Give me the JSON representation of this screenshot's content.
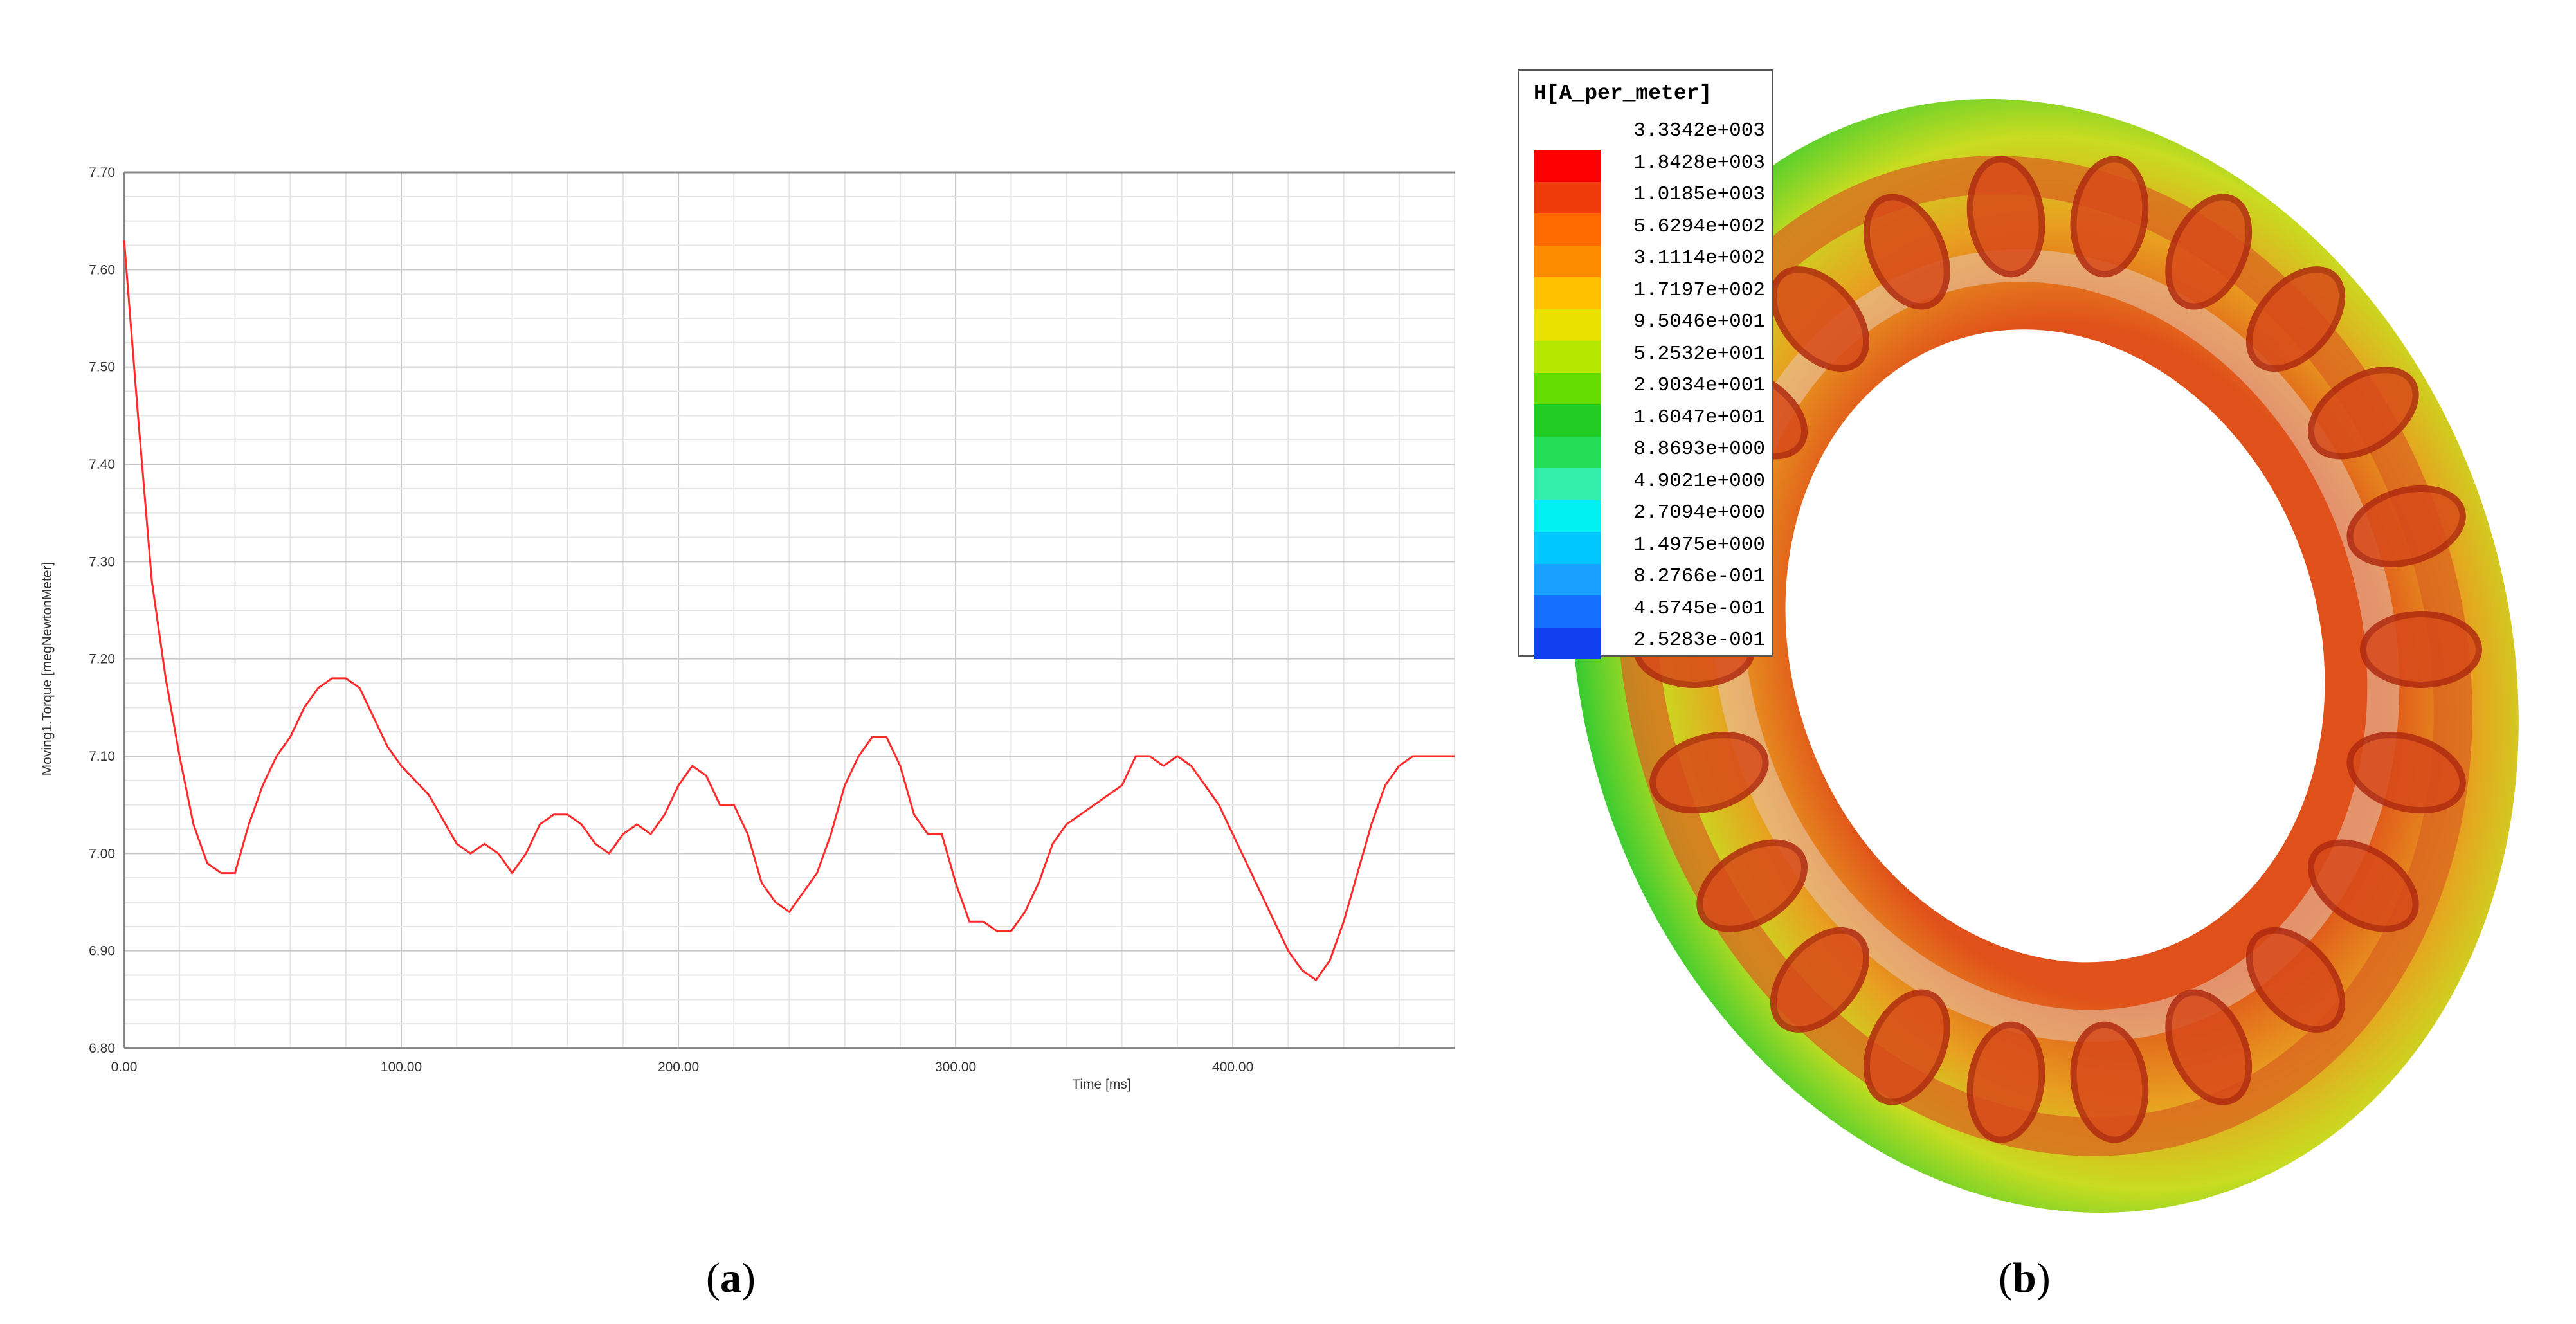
{
  "chart_data": {
    "type": "line",
    "xlabel": "Time [ms]",
    "ylabel": "Moving1.Torque [megNewtonMeter]",
    "xlim": [
      0,
      480
    ],
    "ylim": [
      6.8,
      7.7
    ],
    "xticks": [
      "0.00",
      "100.00",
      "200.00",
      "300.00",
      "400.00"
    ],
    "xtick_values": [
      0,
      100,
      200,
      300,
      400
    ],
    "yticks": [
      "6.80",
      "6.90",
      "7.00",
      "7.10",
      "7.20",
      "7.30",
      "7.40",
      "7.50",
      "7.60",
      "7.70"
    ],
    "ytick_values": [
      6.8,
      6.9,
      7.0,
      7.1,
      7.2,
      7.3,
      7.4,
      7.5,
      7.6,
      7.7
    ],
    "grid": true,
    "series": [
      {
        "name": "Moving1.Torque",
        "color": "#ff2a2a",
        "x": [
          0,
          5,
          10,
          15,
          20,
          25,
          30,
          35,
          40,
          45,
          50,
          55,
          60,
          65,
          70,
          75,
          80,
          85,
          90,
          95,
          100,
          110,
          120,
          125,
          130,
          135,
          140,
          145,
          150,
          155,
          160,
          165,
          170,
          175,
          180,
          185,
          190,
          195,
          200,
          205,
          210,
          215,
          220,
          225,
          230,
          235,
          240,
          245,
          250,
          255,
          260,
          265,
          270,
          275,
          280,
          285,
          290,
          295,
          300,
          305,
          310,
          315,
          320,
          325,
          330,
          335,
          340,
          345,
          350,
          355,
          360,
          365,
          370,
          375,
          380,
          385,
          390,
          395,
          400,
          405,
          410,
          415,
          420,
          425,
          430,
          435,
          440,
          445,
          450,
          455,
          460,
          465,
          470,
          475,
          480
        ],
        "y": [
          7.63,
          7.45,
          7.28,
          7.18,
          7.1,
          7.03,
          6.99,
          6.98,
          6.98,
          7.03,
          7.07,
          7.1,
          7.12,
          7.15,
          7.17,
          7.18,
          7.18,
          7.17,
          7.14,
          7.11,
          7.09,
          7.06,
          7.01,
          7.0,
          7.01,
          7.0,
          6.98,
          7.0,
          7.03,
          7.04,
          7.04,
          7.03,
          7.01,
          7.0,
          7.02,
          7.03,
          7.02,
          7.04,
          7.07,
          7.09,
          7.08,
          7.05,
          7.05,
          7.02,
          6.97,
          6.95,
          6.94,
          6.96,
          6.98,
          7.02,
          7.07,
          7.1,
          7.12,
          7.12,
          7.09,
          7.04,
          7.02,
          7.02,
          6.97,
          6.93,
          6.93,
          6.92,
          6.92,
          6.94,
          6.97,
          7.01,
          7.03,
          7.04,
          7.05,
          7.06,
          7.07,
          7.1,
          7.1,
          7.09,
          7.1,
          7.09,
          7.07,
          7.05,
          7.02,
          6.99,
          6.96,
          6.93,
          6.9,
          6.88,
          6.87,
          6.89,
          6.93,
          6.98,
          7.03,
          7.07,
          7.09,
          7.1,
          7.1,
          7.1,
          7.1
        ]
      }
    ]
  },
  "legend": {
    "title": "H[A_per_meter]",
    "values": [
      "3.3342e+003",
      "1.8428e+003",
      "1.0185e+003",
      "5.6294e+002",
      "3.1114e+002",
      "1.7197e+002",
      "9.5046e+001",
      "5.2532e+001",
      "2.9034e+001",
      "1.6047e+001",
      "8.8693e+000",
      "4.9021e+000",
      "2.7094e+000",
      "1.4975e+000",
      "8.2766e-001",
      "4.5745e-001",
      "2.5283e-001"
    ],
    "colors": [
      "#ff0000",
      "#f03a0a",
      "#ff6a00",
      "#ff8c00",
      "#ffc000",
      "#e8e000",
      "#b4e600",
      "#66dd00",
      "#22cc22",
      "#22dd55",
      "#33eeaa",
      "#00f0f0",
      "#00c8ff",
      "#1aa0ff",
      "#1670ff",
      "#1040f0",
      "#1010e8"
    ]
  },
  "labels": {
    "a": "a",
    "b": "b"
  }
}
